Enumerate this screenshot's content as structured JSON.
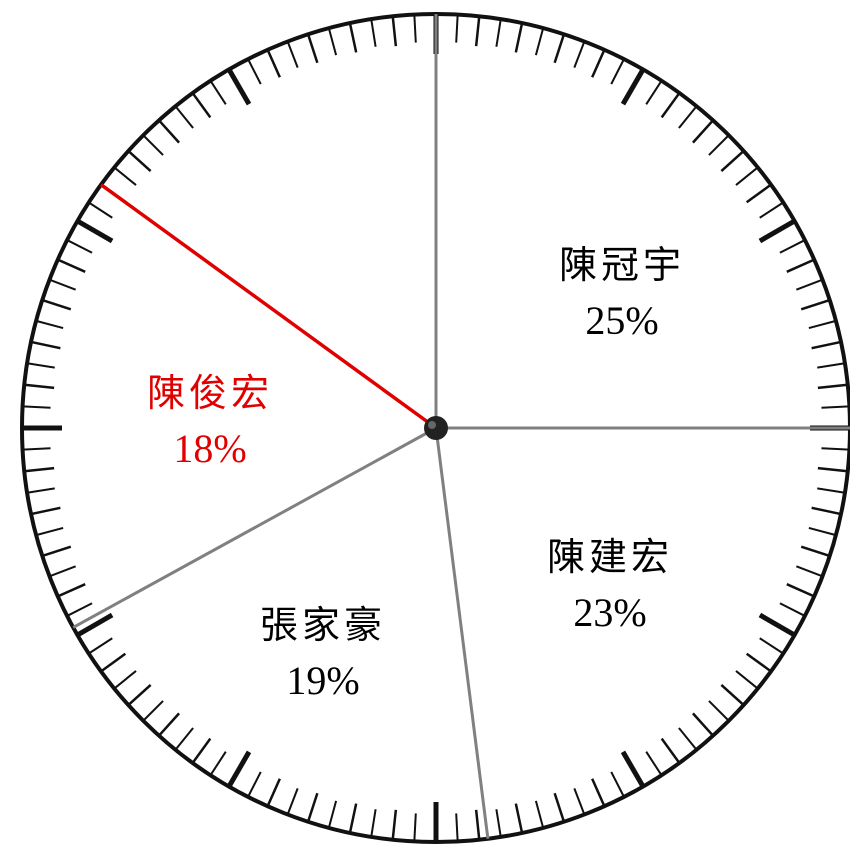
{
  "chart_data": {
    "type": "pie",
    "slices": [
      {
        "label": "陳冠宇",
        "value": 25,
        "value_label": "25%",
        "color": "#000000"
      },
      {
        "label": "陳建宏",
        "value": 23,
        "value_label": "23%",
        "color": "#000000"
      },
      {
        "label": "張家豪",
        "value": 19,
        "value_label": "19%",
        "color": "#000000"
      },
      {
        "label": "陳俊宏",
        "value": 18,
        "value_label": "18%",
        "color": "#e00000",
        "highlighted": true
      }
    ],
    "divider_color": "#808080",
    "highlight_color": "#e00000",
    "rim_color": "#111111"
  }
}
